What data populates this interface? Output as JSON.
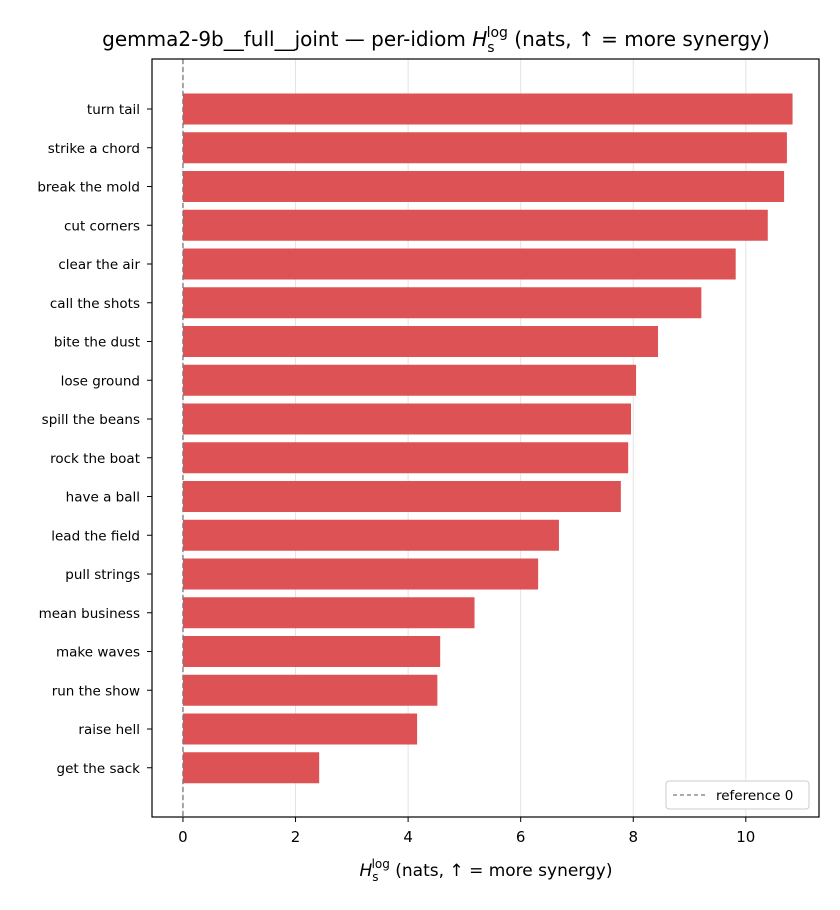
{
  "chart_data": {
    "type": "bar",
    "orientation": "horizontal",
    "title": {
      "prefix": "gemma2-9b__full__joint — per-idiom ",
      "symbol": "H",
      "subscript": "s",
      "superscript": "log",
      "suffix": " (nats, ↑ = more synergy)"
    },
    "xlabel": {
      "symbol": "H",
      "subscript": "s",
      "superscript": "log",
      "suffix": " (nats, ↑ = more synergy)"
    },
    "categories": [
      "turn tail",
      "strike a chord",
      "break the mold",
      "cut corners",
      "clear the air",
      "call the shots",
      "bite the dust",
      "lose ground",
      "spill the beans",
      "rock the boat",
      "have a ball",
      "lead the field",
      "pull strings",
      "mean business",
      "make waves",
      "run the show",
      "raise hell",
      "get the sack"
    ],
    "values": [
      10.83,
      10.73,
      10.68,
      10.39,
      9.82,
      9.21,
      8.44,
      8.05,
      7.96,
      7.91,
      7.78,
      6.68,
      6.31,
      5.18,
      4.57,
      4.52,
      4.16,
      2.42
    ],
    "xlim": [
      -0.55,
      11.3
    ],
    "xticks": [
      0,
      2,
      4,
      6,
      8,
      10
    ],
    "grid": "x",
    "bar_color": "#dd5255",
    "reference_line": {
      "value": 0,
      "label": "reference 0",
      "color": "#777777"
    },
    "legend_position": "bottom-right"
  }
}
